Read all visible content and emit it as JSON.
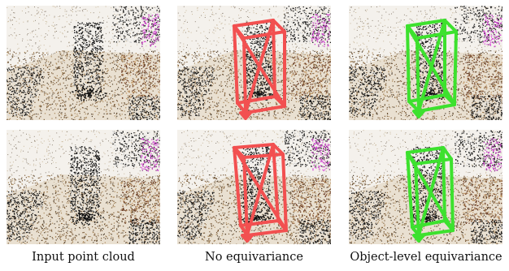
{
  "figure": {
    "columns": [
      {
        "key": "input",
        "caption": "Input point cloud"
      },
      {
        "key": "no_eq",
        "caption": "No equivariance",
        "box_color": "#f25050"
      },
      {
        "key": "obj_eq",
        "caption": "Object-level equivariance",
        "box_color": "#3de12e"
      }
    ],
    "rows": 2
  }
}
